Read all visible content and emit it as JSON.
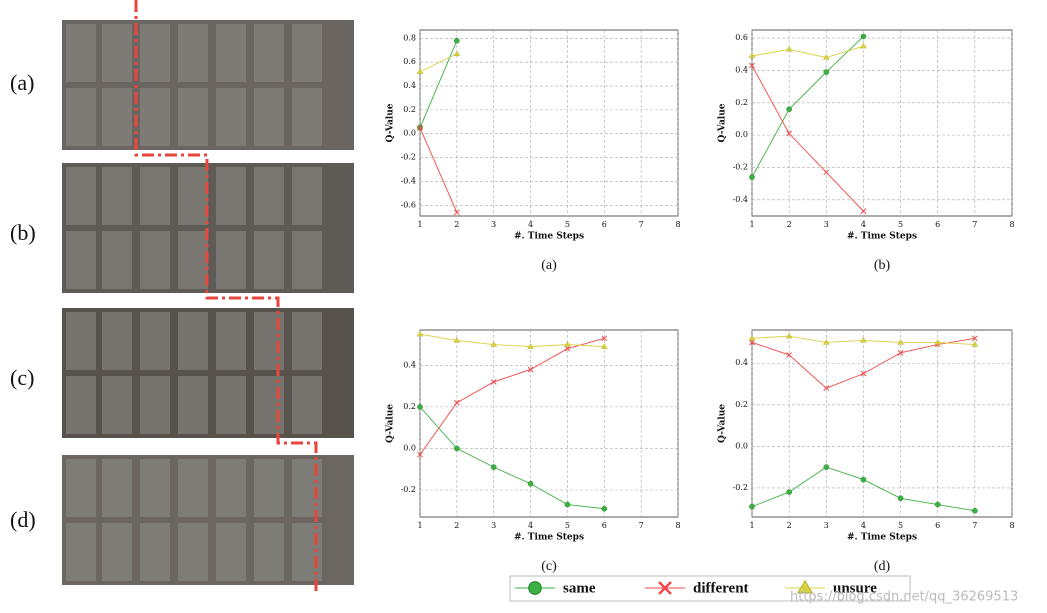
{
  "row_labels": [
    "(a)",
    "(b)",
    "(c)",
    "(d)"
  ],
  "watermark": "https://blog.csdn.net/qq_36269513",
  "chart_data": [
    {
      "type": "line",
      "caption": "(a)",
      "xlabel": "#. Time Steps",
      "ylabel": "Q-Value",
      "grid": true,
      "x": [
        1,
        2
      ],
      "xlim": [
        1,
        8
      ],
      "xticks": [
        1,
        2,
        3,
        4,
        5,
        6,
        7,
        8
      ],
      "ylim": [
        -0.69,
        0.87
      ],
      "yticks": [
        -0.6,
        -0.4,
        -0.2,
        {
          "value": 0,
          "label": "0.0"
        },
        0.2,
        0.4,
        0.6,
        0.8
      ],
      "series": [
        {
          "name": "same",
          "color": "#3cb043",
          "marker": "circle",
          "values": [
            0.05,
            0.78
          ]
        },
        {
          "name": "different",
          "color": "#f04848",
          "marker": "cross",
          "values": [
            0.05,
            -0.66
          ]
        },
        {
          "name": "unsure",
          "color": "#d8d040",
          "marker": "triangle",
          "values": [
            0.52,
            0.67
          ]
        }
      ]
    },
    {
      "type": "line",
      "caption": "(b)",
      "xlabel": "#. Time Steps",
      "ylabel": "Q-Value",
      "grid": true,
      "x": [
        1,
        2,
        3,
        4
      ],
      "xlim": [
        1,
        8
      ],
      "xticks": [
        1,
        2,
        3,
        4,
        5,
        6,
        7,
        8
      ],
      "ylim": [
        -0.5,
        0.65
      ],
      "yticks": [
        -0.4,
        -0.2,
        {
          "value": 0,
          "label": "0.0"
        },
        0.2,
        0.4,
        0.6
      ],
      "series": [
        {
          "name": "same",
          "color": "#3cb043",
          "marker": "circle",
          "values": [
            -0.26,
            0.16,
            0.39,
            0.61
          ]
        },
        {
          "name": "different",
          "color": "#f04848",
          "marker": "cross",
          "values": [
            0.43,
            0.01,
            -0.23,
            -0.47
          ]
        },
        {
          "name": "unsure",
          "color": "#d8d040",
          "marker": "triangle",
          "values": [
            0.49,
            0.53,
            0.48,
            0.55
          ]
        }
      ]
    },
    {
      "type": "line",
      "caption": "(c)",
      "xlabel": "#. Time Steps",
      "ylabel": "Q-Value",
      "grid": true,
      "x": [
        1,
        2,
        3,
        4,
        5,
        6
      ],
      "xlim": [
        1,
        8
      ],
      "xticks": [
        1,
        2,
        3,
        4,
        5,
        6,
        7,
        8
      ],
      "ylim": [
        -0.33,
        0.57
      ],
      "yticks": [
        -0.2,
        {
          "value": 0,
          "label": "0.0"
        },
        0.2,
        0.4
      ],
      "series": [
        {
          "name": "same",
          "color": "#3cb043",
          "marker": "circle",
          "values": [
            0.2,
            0.0,
            -0.09,
            -0.17,
            -0.27,
            -0.29
          ]
        },
        {
          "name": "different",
          "color": "#f04848",
          "marker": "cross",
          "values": [
            -0.03,
            0.22,
            0.32,
            0.38,
            0.48,
            0.53
          ]
        },
        {
          "name": "unsure",
          "color": "#d8d040",
          "marker": "triangle",
          "values": [
            0.55,
            0.52,
            0.5,
            0.49,
            0.5,
            0.49
          ]
        }
      ]
    },
    {
      "type": "line",
      "caption": "(d)",
      "xlabel": "#. Time Steps",
      "ylabel": "Q-Value",
      "grid": true,
      "x": [
        1,
        2,
        3,
        4,
        5,
        6,
        7
      ],
      "xlim": [
        1,
        8
      ],
      "xticks": [
        1,
        2,
        3,
        4,
        5,
        6,
        7,
        8
      ],
      "ylim": [
        -0.34,
        0.56
      ],
      "yticks": [
        -0.2,
        {
          "value": 0,
          "label": "0.0"
        },
        0.2,
        0.4
      ],
      "series": [
        {
          "name": "same",
          "color": "#3cb043",
          "marker": "circle",
          "values": [
            -0.29,
            -0.22,
            -0.1,
            -0.16,
            -0.25,
            -0.28,
            -0.31
          ]
        },
        {
          "name": "different",
          "color": "#f04848",
          "marker": "cross",
          "values": [
            0.5,
            0.44,
            0.28,
            0.35,
            0.45,
            0.49,
            0.52
          ]
        },
        {
          "name": "unsure",
          "color": "#d8d040",
          "marker": "triangle",
          "values": [
            0.52,
            0.53,
            0.5,
            0.51,
            0.5,
            0.5,
            0.49
          ]
        }
      ]
    }
  ]
}
